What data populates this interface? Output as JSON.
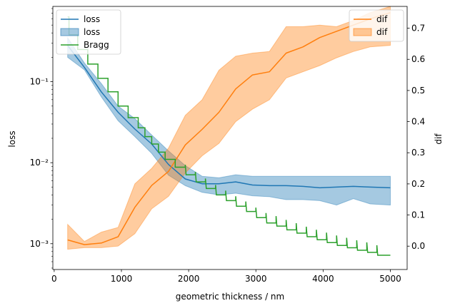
{
  "chart_data": {
    "type": "line",
    "xlabel": "geometric thickness / nm",
    "ylabel_left": "loss",
    "ylabel_right": "dif",
    "xlim": [
      -20,
      5250
    ],
    "xticks": [
      0,
      1000,
      2000,
      3000,
      4000,
      5000
    ],
    "left_axis": {
      "scale": "log",
      "ylim": [
        0.00048,
        0.85
      ],
      "ticks": [
        0.001,
        0.01,
        0.1
      ],
      "tick_labels": [
        "10⁻³",
        "10⁻²",
        "10⁻¹"
      ]
    },
    "right_axis": {
      "scale": "linear",
      "ylim": [
        -0.075,
        0.77
      ],
      "ticks": [
        0.0,
        0.1,
        0.2,
        0.3,
        0.4,
        0.5,
        0.6,
        0.7
      ],
      "tick_labels": [
        "0.0",
        "0.1",
        "0.2",
        "0.3",
        "0.4",
        "0.5",
        "0.6",
        "0.7"
      ]
    },
    "colors": {
      "loss": "#1f77b4",
      "dif": "#ff7f0e",
      "bragg": "#2ca02c"
    },
    "legend_left": {
      "placement": "upper-left",
      "entries": [
        "loss",
        "loss",
        "Bragg"
      ]
    },
    "legend_right": {
      "placement": "upper-right",
      "entries": [
        "dif",
        "dif"
      ]
    },
    "x": [
      200,
      450,
      700,
      950,
      1200,
      1450,
      1700,
      1950,
      2200,
      2450,
      2700,
      2950,
      3200,
      3450,
      3700,
      3950,
      4200,
      4450,
      4700,
      5000
    ],
    "series": [
      {
        "name": "loss",
        "axis": "left",
        "values": [
          0.28,
          0.15,
          0.075,
          0.042,
          0.026,
          0.017,
          0.0095,
          0.0063,
          0.0055,
          0.0055,
          0.0058,
          0.0053,
          0.0052,
          0.0052,
          0.0051,
          0.0049,
          0.005,
          0.0051,
          0.005,
          0.0049
        ],
        "band_low": [
          0.2,
          0.14,
          0.065,
          0.033,
          0.021,
          0.013,
          0.007,
          0.0052,
          0.0043,
          0.004,
          0.0042,
          0.0039,
          0.0038,
          0.0035,
          0.0035,
          0.0034,
          0.003,
          0.0036,
          0.0031,
          0.003
        ],
        "band_high": [
          0.35,
          0.17,
          0.095,
          0.05,
          0.035,
          0.022,
          0.014,
          0.0092,
          0.0068,
          0.0065,
          0.0071,
          0.0068,
          0.0068,
          0.0068,
          0.0068,
          0.0068,
          0.0068,
          0.0068,
          0.0068,
          0.0068
        ]
      },
      {
        "name": "dif",
        "axis": "right",
        "values": [
          0.02,
          0.005,
          0.01,
          0.03,
          0.125,
          0.195,
          0.24,
          0.325,
          0.375,
          0.43,
          0.505,
          0.55,
          0.56,
          0.62,
          0.64,
          0.67,
          0.69,
          0.71,
          0.73,
          0.75
        ],
        "band_low": [
          -0.01,
          -0.005,
          -0.005,
          0.0,
          0.04,
          0.12,
          0.16,
          0.235,
          0.29,
          0.33,
          0.4,
          0.44,
          0.47,
          0.54,
          0.56,
          0.58,
          0.605,
          0.625,
          0.64,
          0.645
        ],
        "band_high": [
          0.07,
          0.015,
          0.045,
          0.06,
          0.2,
          0.25,
          0.315,
          0.42,
          0.47,
          0.565,
          0.61,
          0.62,
          0.625,
          0.705,
          0.705,
          0.71,
          0.705,
          0.725,
          0.75,
          0.77
        ]
      },
      {
        "name": "Bragg",
        "axis": "left",
        "x": [
          220,
          350,
          500,
          650,
          800,
          950,
          1100,
          1250,
          1350,
          1450,
          1550,
          1650,
          1800,
          1950,
          2100,
          2250,
          2400,
          2550,
          2700,
          2850,
          3000,
          3150,
          3300,
          3450,
          3600,
          3750,
          3900,
          4050,
          4200,
          4350,
          4500,
          4650,
          4800,
          4950
        ],
        "values": [
          0.63,
          0.38,
          0.25,
          0.165,
          0.11,
          0.075,
          0.05,
          0.036,
          0.027,
          0.021,
          0.017,
          0.0135,
          0.011,
          0.0088,
          0.0071,
          0.0058,
          0.0048,
          0.004,
          0.0034,
          0.0029,
          0.0025,
          0.0021,
          0.0018,
          0.00165,
          0.00148,
          0.00135,
          0.00122,
          0.00112,
          0.00103,
          0.00095,
          0.00089,
          0.00083,
          0.00078,
          0.00072
        ]
      }
    ]
  }
}
